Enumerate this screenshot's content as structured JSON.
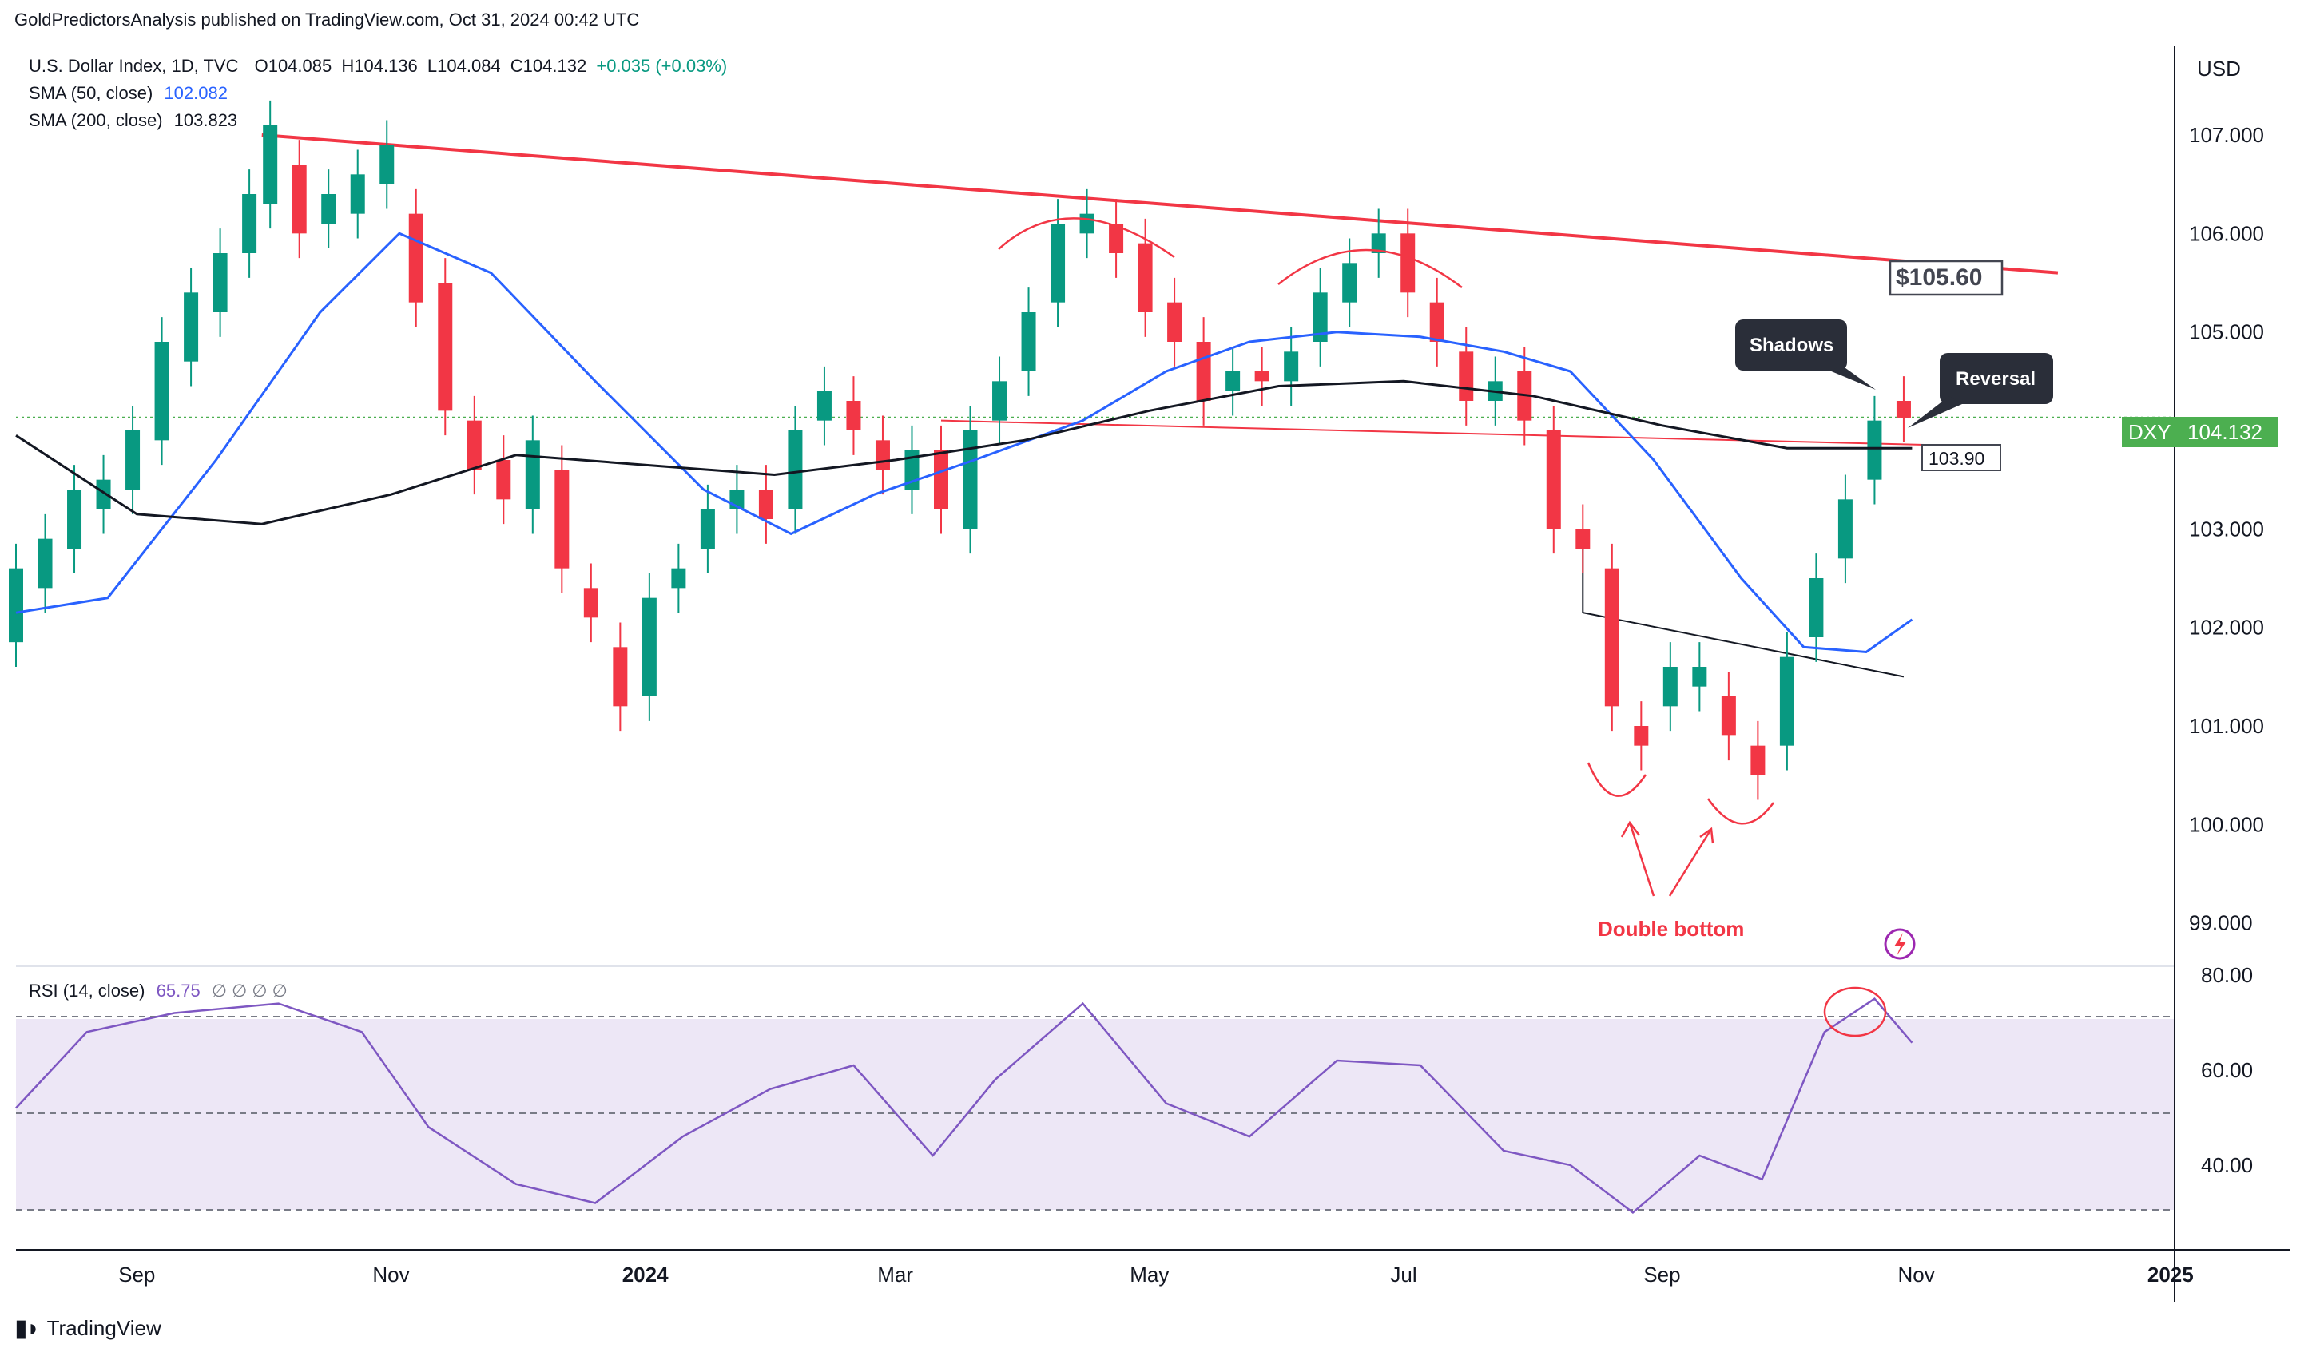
{
  "header": {
    "publisher_line": "GoldPredictorsAnalysis published on TradingView.com, Oct 31, 2024 00:42 UTC"
  },
  "legend": {
    "symbol_line": "U.S. Dollar Index, 1D, TVC",
    "open": "O104.085",
    "high": "H104.136",
    "low": "L104.084",
    "close": "C104.132",
    "change": "+0.035 (+0.03%)",
    "sma50_label": "SMA (50, close)",
    "sma50_value": "102.082",
    "sma200_label": "SMA (200, close)",
    "sma200_value": "103.823",
    "rsi_label": "RSI (14, close)",
    "rsi_value": "65.75",
    "rsi_extra": "∅ ∅ ∅ ∅"
  },
  "colors": {
    "up": "#089981",
    "down": "#f23645",
    "sma50": "#2962ff",
    "sma200": "#131722",
    "trendline": "#f23645",
    "rsi_line": "#7e57c2",
    "rsi_band": "#ede7f6",
    "price_tag": "#4caf50"
  },
  "price_axis": {
    "currency": "USD",
    "ticks": [
      "107.000",
      "106.000",
      "105.000",
      "104.000",
      "103.000",
      "102.000",
      "101.000",
      "100.000",
      "99.000"
    ],
    "current_symbol": "DXY",
    "current_price": "104.132"
  },
  "rsi_axis": {
    "ticks": [
      "80.00",
      "60.00",
      "40.00"
    ]
  },
  "time_axis": {
    "labels": [
      "Sep",
      "Nov",
      "2024",
      "Mar",
      "May",
      "Jul",
      "Sep",
      "Nov",
      "2025"
    ]
  },
  "annotations": {
    "resistance_price": "$105.60",
    "support_price": "103.90",
    "shadows": "Shadows",
    "reversal": "Reversal",
    "double_bottom": "Double bottom"
  },
  "chart_data": [
    {
      "type": "candlestick",
      "title": "U.S. Dollar Index, 1D, TVC",
      "ylim": [
        98.6,
        107.9
      ],
      "x_range": [
        "2023-08-03",
        "2025-01-02"
      ],
      "series": [
        {
          "name": "SMA (50, close)",
          "last": 102.082,
          "points": [
            [
              "2023-08-03",
              102.15
            ],
            [
              "2023-08-25",
              102.3
            ],
            [
              "2023-09-20",
              103.7
            ],
            [
              "2023-10-15",
              105.2
            ],
            [
              "2023-11-03",
              106.0
            ],
            [
              "2023-11-25",
              105.6
            ],
            [
              "2023-12-20",
              104.5
            ],
            [
              "2024-01-15",
              103.4
            ],
            [
              "2024-02-05",
              102.95
            ],
            [
              "2024-02-25",
              103.35
            ],
            [
              "2024-03-20",
              103.7
            ],
            [
              "2024-04-15",
              104.1
            ],
            [
              "2024-05-05",
              104.6
            ],
            [
              "2024-05-25",
              104.9
            ],
            [
              "2024-06-15",
              105.0
            ],
            [
              "2024-07-05",
              104.95
            ],
            [
              "2024-07-25",
              104.8
            ],
            [
              "2024-08-10",
              104.6
            ],
            [
              "2024-08-30",
              103.7
            ],
            [
              "2024-09-20",
              102.5
            ],
            [
              "2024-10-05",
              101.8
            ],
            [
              "2024-10-20",
              101.75
            ],
            [
              "2024-10-31",
              102.08
            ]
          ]
        },
        {
          "name": "SMA (200, close)",
          "last": 103.823,
          "points": [
            [
              "2023-08-03",
              103.95
            ],
            [
              "2023-09-01",
              103.15
            ],
            [
              "2023-10-01",
              103.05
            ],
            [
              "2023-11-01",
              103.35
            ],
            [
              "2023-12-01",
              103.75
            ],
            [
              "2024-01-01",
              103.65
            ],
            [
              "2024-02-01",
              103.55
            ],
            [
              "2024-03-01",
              103.7
            ],
            [
              "2024-04-01",
              103.9
            ],
            [
              "2024-05-01",
              104.2
            ],
            [
              "2024-06-01",
              104.45
            ],
            [
              "2024-07-01",
              104.5
            ],
            [
              "2024-08-01",
              104.35
            ],
            [
              "2024-09-01",
              104.05
            ],
            [
              "2024-10-01",
              103.82
            ],
            [
              "2024-10-31",
              103.82
            ]
          ]
        }
      ],
      "candles": [
        [
          "2023-08-03",
          101.85,
          102.6
        ],
        [
          "2023-08-10",
          102.4,
          102.9
        ],
        [
          "2023-08-17",
          102.8,
          103.4
        ],
        [
          "2023-08-24",
          103.2,
          103.5
        ],
        [
          "2023-08-31",
          103.4,
          104.0
        ],
        [
          "2023-09-07",
          103.9,
          104.9
        ],
        [
          "2023-09-14",
          104.7,
          105.4
        ],
        [
          "2023-09-21",
          105.2,
          105.8
        ],
        [
          "2023-09-28",
          105.8,
          106.4
        ],
        [
          "2023-10-03",
          106.3,
          107.1
        ],
        [
          "2023-10-10",
          106.7,
          106.0
        ],
        [
          "2023-10-17",
          106.1,
          106.4
        ],
        [
          "2023-10-24",
          106.2,
          106.6
        ],
        [
          "2023-10-31",
          106.5,
          106.9
        ],
        [
          "2023-11-07",
          106.2,
          105.3
        ],
        [
          "2023-11-14",
          105.5,
          104.2
        ],
        [
          "2023-11-21",
          104.1,
          103.6
        ],
        [
          "2023-11-28",
          103.7,
          103.3
        ],
        [
          "2023-12-05",
          103.2,
          103.9
        ],
        [
          "2023-12-12",
          103.6,
          102.6
        ],
        [
          "2023-12-19",
          102.4,
          102.1
        ],
        [
          "2023-12-26",
          101.8,
          101.2
        ],
        [
          "2024-01-02",
          101.3,
          102.3
        ],
        [
          "2024-01-09",
          102.4,
          102.6
        ],
        [
          "2024-01-16",
          102.8,
          103.2
        ],
        [
          "2024-01-23",
          103.2,
          103.4
        ],
        [
          "2024-01-30",
          103.4,
          103.1
        ],
        [
          "2024-02-06",
          103.2,
          104.0
        ],
        [
          "2024-02-13",
          104.1,
          104.4
        ],
        [
          "2024-02-20",
          104.3,
          104.0
        ],
        [
          "2024-02-27",
          103.9,
          103.6
        ],
        [
          "2024-03-05",
          103.4,
          103.8
        ],
        [
          "2024-03-12",
          103.8,
          103.2
        ],
        [
          "2024-03-19",
          103.0,
          104.0
        ],
        [
          "2024-03-26",
          104.1,
          104.5
        ],
        [
          "2024-04-02",
          104.6,
          105.2
        ],
        [
          "2024-04-09",
          105.3,
          106.1
        ],
        [
          "2024-04-16",
          106.0,
          106.2
        ],
        [
          "2024-04-23",
          106.1,
          105.8
        ],
        [
          "2024-04-30",
          105.9,
          105.2
        ],
        [
          "2024-05-07",
          105.3,
          104.9
        ],
        [
          "2024-05-14",
          104.9,
          104.3
        ],
        [
          "2024-05-21",
          104.4,
          104.6
        ],
        [
          "2024-05-28",
          104.6,
          104.5
        ],
        [
          "2024-06-04",
          104.5,
          104.8
        ],
        [
          "2024-06-11",
          104.9,
          105.4
        ],
        [
          "2024-06-18",
          105.3,
          105.7
        ],
        [
          "2024-06-25",
          105.8,
          106.0
        ],
        [
          "2024-07-02",
          106.0,
          105.4
        ],
        [
          "2024-07-09",
          105.3,
          104.9
        ],
        [
          "2024-07-16",
          104.8,
          104.3
        ],
        [
          "2024-07-23",
          104.3,
          104.5
        ],
        [
          "2024-07-30",
          104.6,
          104.1
        ],
        [
          "2024-08-06",
          104.0,
          103.0
        ],
        [
          "2024-08-13",
          103.0,
          102.8
        ],
        [
          "2024-08-20",
          102.6,
          101.2
        ],
        [
          "2024-08-27",
          101.0,
          100.8
        ],
        [
          "2024-09-03",
          101.2,
          101.6
        ],
        [
          "2024-09-10",
          101.4,
          101.6
        ],
        [
          "2024-09-17",
          101.3,
          100.9
        ],
        [
          "2024-09-24",
          100.8,
          100.5
        ],
        [
          "2024-10-01",
          100.8,
          101.7
        ],
        [
          "2024-10-08",
          101.9,
          102.5
        ],
        [
          "2024-10-15",
          102.7,
          103.3
        ],
        [
          "2024-10-22",
          103.5,
          104.1
        ],
        [
          "2024-10-29",
          104.3,
          104.13
        ]
      ]
    },
    {
      "type": "line",
      "title": "RSI (14, close)",
      "ylim": [
        23,
        81
      ],
      "levels": [
        70,
        50,
        30
      ],
      "x": [
        "2023-08-03",
        "2023-08-20",
        "2023-09-10",
        "2023-10-05",
        "2023-10-25",
        "2023-11-10",
        "2023-12-01",
        "2023-12-20",
        "2024-01-10",
        "2024-01-31",
        "2024-02-20",
        "2024-03-10",
        "2024-03-25",
        "2024-04-15",
        "2024-05-05",
        "2024-05-25",
        "2024-06-15",
        "2024-07-05",
        "2024-07-25",
        "2024-08-10",
        "2024-08-25",
        "2024-09-10",
        "2024-09-25",
        "2024-10-10",
        "2024-10-22",
        "2024-10-31"
      ],
      "values": [
        52,
        68,
        72,
        74,
        68,
        48,
        36,
        32,
        46,
        56,
        61,
        42,
        58,
        74,
        53,
        46,
        62,
        61,
        43,
        40,
        30,
        42,
        37,
        68,
        75,
        65.75
      ]
    }
  ]
}
